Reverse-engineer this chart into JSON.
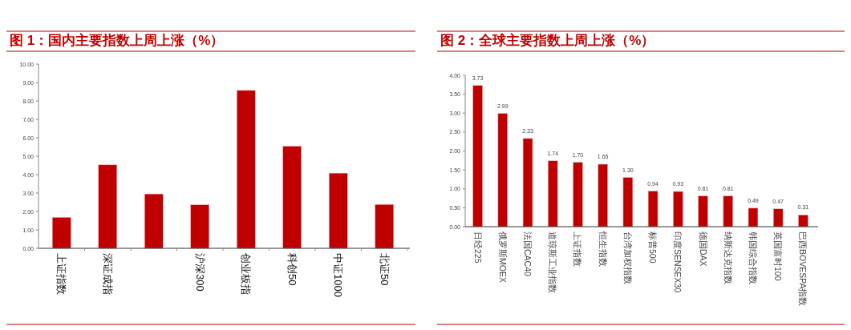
{
  "chart_data": [
    {
      "type": "bar",
      "title": "图 1：国内主要指数上周上涨（%）",
      "categories": [
        "上证指数",
        "深证成指",
        null,
        "沪深300",
        "创业板指",
        "科创50",
        "中证1000",
        "北证50"
      ],
      "values": [
        1.68,
        4.53,
        2.95,
        2.36,
        8.57,
        5.54,
        4.08,
        2.38
      ],
      "color": "#c00000",
      "ylim": [
        0,
        10
      ],
      "yticks": [
        {
          "value": 0,
          "label": "0.00"
        },
        {
          "value": 1,
          "label": "1.00"
        },
        {
          "value": 2,
          "label": "2.00"
        },
        {
          "value": 3,
          "label": "3.00"
        },
        {
          "value": 4,
          "label": "4.00"
        },
        {
          "value": 5,
          "label": "5.00"
        },
        {
          "value": 6,
          "label": "6.00"
        },
        {
          "value": 7,
          "label": "7.00"
        },
        {
          "value": 8,
          "label": "8.00"
        },
        {
          "value": 9,
          "label": "9.00"
        },
        {
          "value": 10,
          "label": "10.00"
        }
      ],
      "grid": false
    },
    {
      "type": "bar",
      "title": "图 2：全球主要指数上周上涨（%）",
      "categories": [
        "日经225",
        "俄罗斯MOEX",
        "法国CAC40",
        "道琼斯工业指数",
        "上证指数",
        "恒生指数",
        "台湾加权指数",
        "标普500",
        "印度SENSEX30",
        "德国DAX",
        "纳斯达克指数",
        "韩国综合指数",
        "英国富时100",
        "巴西BOVESPA指数"
      ],
      "values": [
        3.73,
        2.99,
        2.33,
        1.74,
        1.7,
        1.65,
        1.3,
        0.94,
        0.93,
        0.81,
        0.81,
        0.49,
        0.47,
        0.31
      ],
      "value_labels": [
        "3.73",
        "2.99",
        "2.33",
        "1.74",
        "1.70",
        "1.65",
        "1.30",
        "0.94",
        "0.93",
        "0.81",
        "0.81",
        "0.49",
        "0.47",
        "0.31"
      ],
      "color": "#c00000",
      "ylim": [
        0,
        4
      ],
      "yticks": [
        {
          "value": 0,
          "label": "0.00"
        },
        {
          "value": 0.5,
          "label": "0.50"
        },
        {
          "value": 1,
          "label": "1.00"
        },
        {
          "value": 1.5,
          "label": "1.50"
        },
        {
          "value": 2,
          "label": "2.00"
        },
        {
          "value": 2.5,
          "label": "2.50"
        },
        {
          "value": 3,
          "label": "3.00"
        },
        {
          "value": 3.5,
          "label": "3.50"
        },
        {
          "value": 4,
          "label": "4.00"
        }
      ],
      "grid": false
    }
  ]
}
